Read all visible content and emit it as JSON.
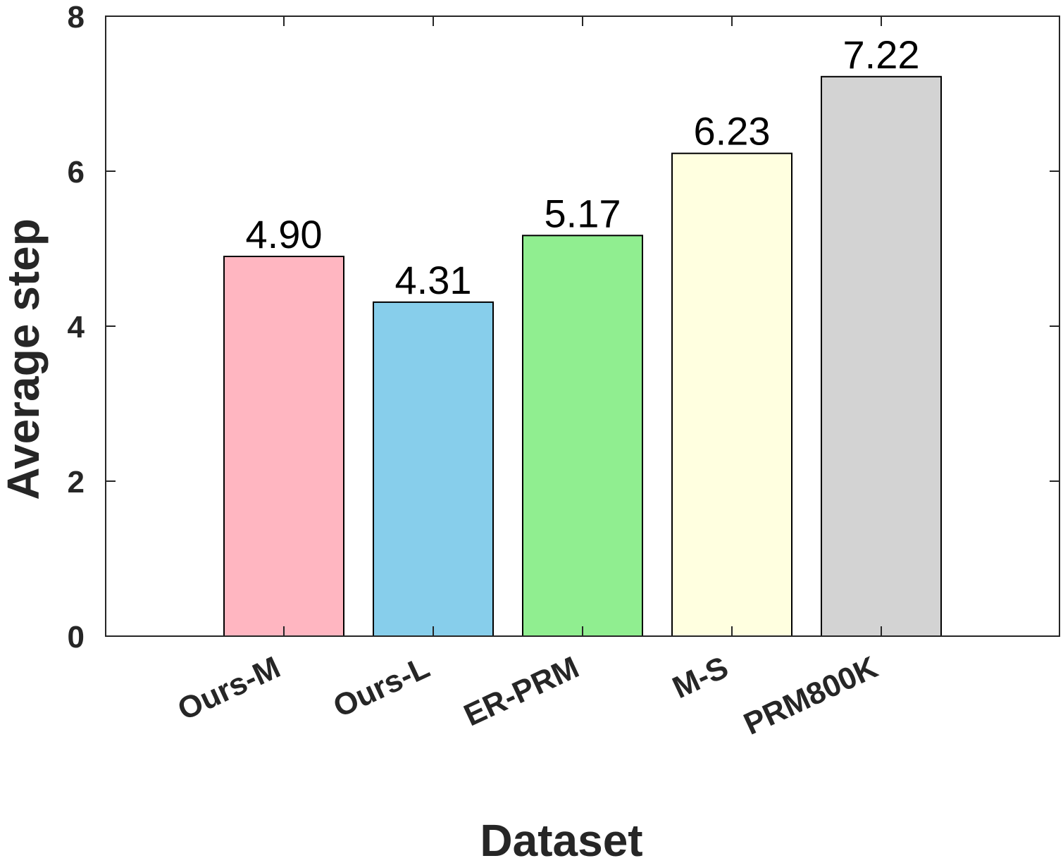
{
  "chart_data": {
    "type": "bar",
    "categories": [
      "Ours-M",
      "Ours-L",
      "ER-PRM",
      "M-S",
      "PRM800K"
    ],
    "values": [
      4.9,
      4.31,
      5.17,
      6.23,
      7.22
    ],
    "value_labels": [
      "4.90",
      "4.31",
      "5.17",
      "6.23",
      "7.22"
    ],
    "colors": [
      "#FFB6C1",
      "#87CEEB",
      "#90EE90",
      "#FFFFE0",
      "#D3D3D3"
    ],
    "xlabel": "Dataset",
    "ylabel": "Average step",
    "ylim": [
      0,
      8
    ],
    "yticks": [
      0,
      2,
      4,
      6,
      8
    ],
    "grid": false,
    "legend": "none"
  }
}
